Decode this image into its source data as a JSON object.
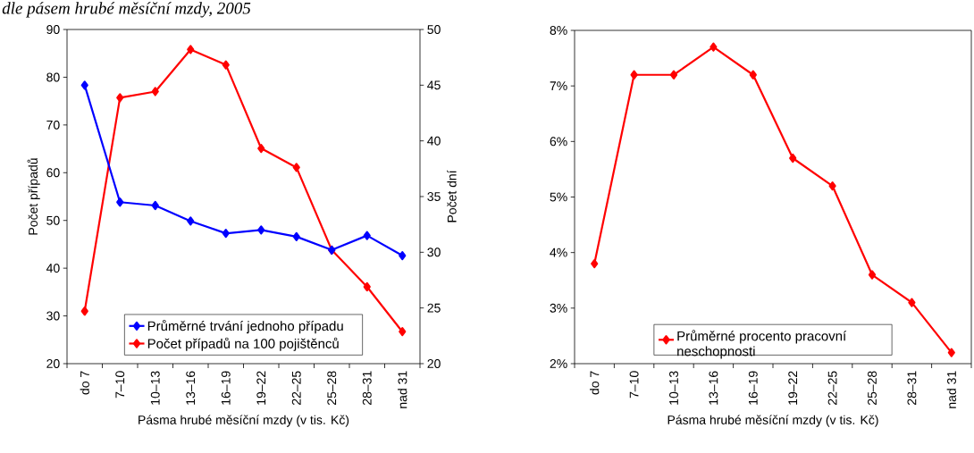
{
  "chart_data": [
    {
      "type": "line",
      "title": "dle pásem hrubé měsíční mzdy, 2005",
      "xlabel": "Pásma hrubé měsíční mzdy (v tis. Kč)",
      "ylabel": "Počet případů",
      "y2label": "Počet dní",
      "categories": [
        "do 7",
        "7–10",
        "10–13",
        "13–16",
        "16–19",
        "19–22",
        "22–25",
        "25–28",
        "28–31",
        "nad 31"
      ],
      "series": [
        {
          "name": "Průměrné trvání jednoho případu",
          "color": "#0000ff",
          "axis": "y2",
          "values": [
            45.0,
            34.5,
            34.2,
            32.8,
            31.7,
            32.0,
            31.4,
            30.2,
            31.5,
            29.7
          ]
        },
        {
          "name": "Počet případů na 100 pojištěnců",
          "color": "#ff0000",
          "axis": "y",
          "values": [
            31.0,
            75.7,
            77.0,
            85.8,
            82.6,
            65.1,
            61.1,
            43.8,
            36.1,
            26.7
          ]
        }
      ],
      "ylim": [
        20,
        90
      ],
      "yticks": [
        20,
        30,
        40,
        50,
        60,
        70,
        80,
        90
      ],
      "y2lim": [
        20,
        50
      ],
      "y2ticks": [
        20,
        25,
        30,
        35,
        40,
        45,
        50
      ],
      "legend": "bottom",
      "marker": "diamond",
      "line_style": "solid"
    },
    {
      "type": "line",
      "xlabel": "Pásma hrubé měsíční mzdy (v tis. Kč)",
      "categories": [
        "do 7",
        "7–10",
        "10–13",
        "13–16",
        "16–19",
        "19–22",
        "22–25",
        "25–28",
        "28–31",
        "nad 31"
      ],
      "series": [
        {
          "name": "Průměrné procento pracovní neschopnosti",
          "color": "#ff0000",
          "values": [
            3.8,
            7.2,
            7.2,
            7.7,
            7.2,
            5.7,
            5.2,
            3.6,
            3.1,
            2.2
          ]
        }
      ],
      "ylim": [
        2,
        8
      ],
      "yticks": [
        {
          "value": 2,
          "label": "2%"
        },
        {
          "value": 3,
          "label": "3%"
        },
        {
          "value": 4,
          "label": "4%"
        },
        {
          "value": 5,
          "label": "5%"
        },
        {
          "value": 6,
          "label": "6%"
        },
        {
          "value": 7,
          "label": "7%"
        },
        {
          "value": 8,
          "label": "8%"
        }
      ],
      "legend": "bottom",
      "marker": "diamond",
      "line_style": "solid"
    }
  ]
}
